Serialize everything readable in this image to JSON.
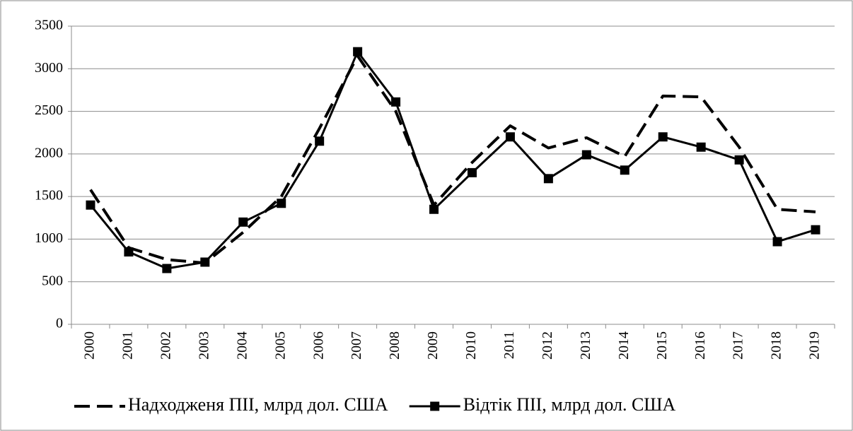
{
  "chart_data": {
    "type": "line",
    "categories": [
      "2000",
      "2001",
      "2002",
      "2003",
      "2004",
      "2005",
      "2006",
      "2007",
      "2008",
      "2009",
      "2010",
      "2011",
      "2012",
      "2013",
      "2014",
      "2015",
      "2016",
      "2017",
      "2018",
      "2019"
    ],
    "series": [
      {
        "name": "Надходженя ПІІ, млрд дол. США",
        "color": "#000000",
        "dash": true,
        "marker": false,
        "values": [
          1580,
          900,
          760,
          720,
          1080,
          1500,
          2300,
          3150,
          2500,
          1400,
          1900,
          2330,
          2070,
          2190,
          1970,
          2680,
          2670,
          2080,
          1350,
          1320
        ]
      },
      {
        "name": "Відтік ПІІ, млрд дол. США",
        "color": "#000000",
        "dash": false,
        "marker": true,
        "values": [
          1400,
          850,
          655,
          730,
          1200,
          1420,
          2150,
          3200,
          2610,
          1350,
          1780,
          2200,
          1710,
          1990,
          1810,
          2200,
          2080,
          1930,
          970,
          1110
        ]
      }
    ],
    "ylim": [
      0,
      3500
    ],
    "yticks": [
      0,
      500,
      1000,
      1500,
      2000,
      2500,
      3000,
      3500
    ],
    "grid": true,
    "legend": "bottom"
  }
}
